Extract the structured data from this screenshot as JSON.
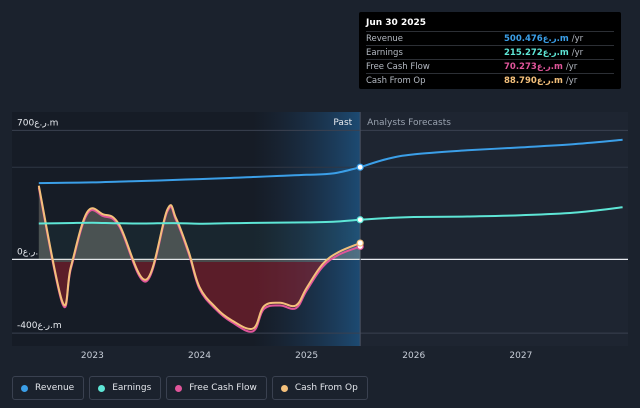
{
  "chart_data": {
    "type": "line",
    "currency_unit": "ر.ع.m",
    "y_ticks": [
      {
        "value": 700,
        "label": "700ر.ع.m"
      },
      {
        "value": 0,
        "label": "0ر.ع."
      },
      {
        "value": -400,
        "label": "-400ر.ع.m"
      }
    ],
    "x_ticks": [
      {
        "value": 2023,
        "label": "2023"
      },
      {
        "value": 2024,
        "label": "2024"
      },
      {
        "value": 2025,
        "label": "2025"
      },
      {
        "value": 2026,
        "label": "2026"
      },
      {
        "value": 2027,
        "label": "2027"
      }
    ],
    "xlim": [
      2022.25,
      2028.0
    ],
    "ylim": [
      -470,
      800
    ],
    "divider_x": 2025.5,
    "past_label": "Past",
    "forecast_label": "Analysts Forecasts",
    "colors": {
      "revenue": "#3b9fe8",
      "earnings": "#5ee6d6",
      "free_cash_flow": "#e0559a",
      "cash_from_op": "#f4c07b"
    },
    "series": [
      {
        "name": "Revenue",
        "key": "revenue",
        "x": [
          2022.5,
          2022.75,
          2023.0,
          2023.25,
          2023.5,
          2023.75,
          2024.0,
          2024.25,
          2024.5,
          2024.75,
          2025.0,
          2025.25,
          2025.5
        ],
        "y": [
          414,
          416,
          418,
          422,
          426,
          431,
          436,
          441,
          447,
          453,
          459,
          467,
          500.476
        ],
        "forecast_x": [
          2025.5,
          2025.75,
          2026.0,
          2026.5,
          2027.0,
          2027.5,
          2027.95
        ],
        "forecast_y": [
          500.476,
          545,
          570,
          592,
          608,
          626,
          649
        ]
      },
      {
        "name": "Earnings",
        "key": "earnings",
        "x": [
          2022.5,
          2022.75,
          2023.0,
          2023.25,
          2023.5,
          2023.75,
          2024.0,
          2024.25,
          2024.5,
          2024.75,
          2025.0,
          2025.25,
          2025.5
        ],
        "y": [
          195,
          197,
          199,
          196,
          195,
          197,
          194,
          196,
          198,
          200,
          201,
          204,
          215.272
        ],
        "forecast_x": [
          2025.5,
          2025.75,
          2026.0,
          2026.5,
          2027.0,
          2027.5,
          2027.95
        ],
        "forecast_y": [
          215.272,
          224,
          230,
          233,
          240,
          254,
          283
        ]
      },
      {
        "name": "Free Cash Flow",
        "key": "free_cash_flow",
        "x": [
          2022.5,
          2022.72,
          2022.8,
          2022.95,
          2023.1,
          2023.25,
          2023.5,
          2023.7,
          2023.78,
          2023.9,
          2024.0,
          2024.15,
          2024.3,
          2024.5,
          2024.6,
          2024.75,
          2024.9,
          2025.0,
          2025.15,
          2025.3,
          2025.5
        ],
        "y": [
          390,
          -240,
          -50,
          245,
          235,
          180,
          -120,
          260,
          215,
          30,
          -160,
          -270,
          -340,
          -390,
          -270,
          -250,
          -265,
          -170,
          -40,
          25,
          70.273
        ]
      },
      {
        "name": "Cash From Op",
        "key": "cash_from_op",
        "x": [
          2022.5,
          2022.72,
          2022.8,
          2022.95,
          2023.1,
          2023.25,
          2023.5,
          2023.7,
          2023.78,
          2023.9,
          2024.0,
          2024.15,
          2024.3,
          2024.5,
          2024.6,
          2024.75,
          2024.9,
          2025.0,
          2025.15,
          2025.3,
          2025.5
        ],
        "y": [
          400,
          -230,
          -40,
          255,
          245,
          190,
          -110,
          270,
          225,
          40,
          -150,
          -260,
          -330,
          -375,
          -255,
          -235,
          -250,
          -155,
          -25,
          40,
          88.79
        ]
      }
    ],
    "legend": [
      {
        "key": "revenue",
        "label": "Revenue"
      },
      {
        "key": "earnings",
        "label": "Earnings"
      },
      {
        "key": "free_cash_flow",
        "label": "Free Cash Flow"
      },
      {
        "key": "cash_from_op",
        "label": "Cash From Op"
      }
    ]
  },
  "tooltip": {
    "date": "Jun 30 2025",
    "rows": [
      {
        "key": "revenue",
        "name": "Revenue",
        "value": "500.476ر.ع.m",
        "unit": "/yr"
      },
      {
        "key": "earnings",
        "name": "Earnings",
        "value": "215.272ر.ع.m",
        "unit": "/yr"
      },
      {
        "key": "free_cash_flow",
        "name": "Free Cash Flow",
        "value": "70.273ر.ع.m",
        "unit": "/yr"
      },
      {
        "key": "cash_from_op",
        "name": "Cash From Op",
        "value": "88.790ر.ع.m",
        "unit": "/yr"
      }
    ]
  }
}
